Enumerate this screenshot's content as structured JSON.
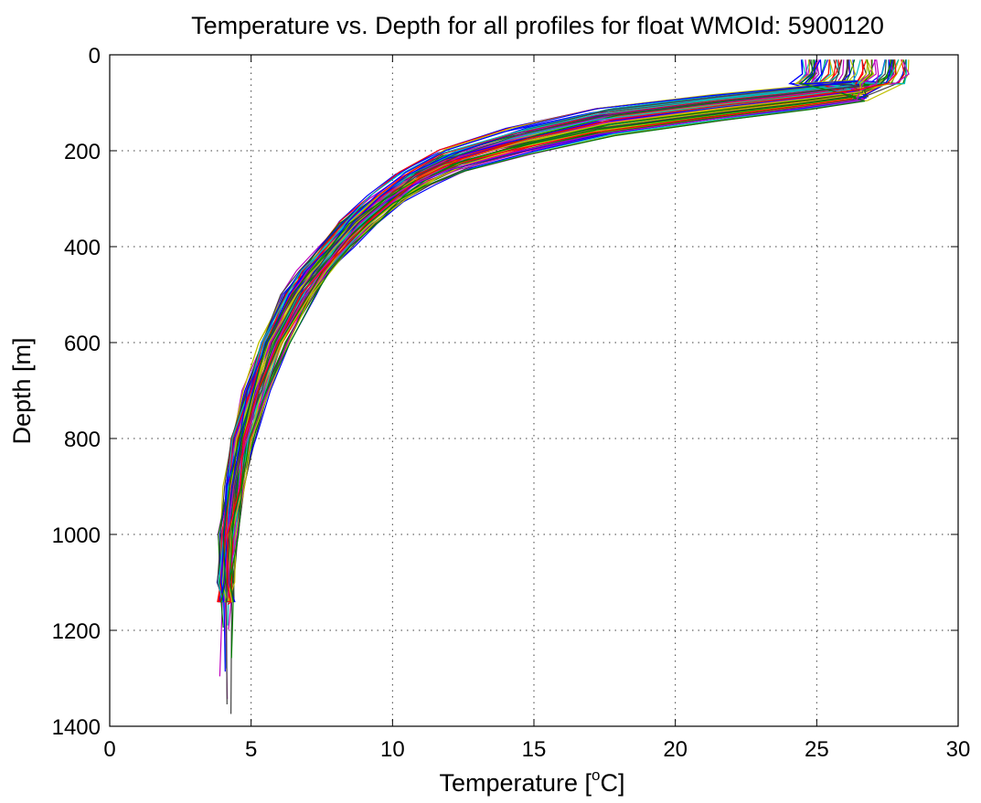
{
  "chart_data": {
    "type": "line",
    "title": "Temperature vs. Depth for all profiles for float WMOId: 5900120",
    "xlabel_main": "Temperature [",
    "xlabel_sup": "o",
    "xlabel_tail": "C]",
    "ylabel": "Depth [m]",
    "xlim": [
      0,
      30
    ],
    "ylim": [
      0,
      1400
    ],
    "y_reversed": true,
    "xticks": [
      0,
      5,
      10,
      15,
      20,
      25,
      30
    ],
    "xtick_labels": [
      "0",
      "5",
      "10",
      "15",
      "20",
      "25",
      "30"
    ],
    "yticks": [
      0,
      200,
      400,
      600,
      800,
      1000,
      1200,
      1400
    ],
    "ytick_labels": [
      "0",
      "200",
      "400",
      "600",
      "800",
      "1000",
      "1200",
      "1400"
    ],
    "grid": true,
    "legend": "none",
    "series_count": 80,
    "representative_profile": {
      "depth": [
        10,
        40,
        60,
        75,
        90,
        110,
        140,
        180,
        220,
        260,
        300,
        350,
        400,
        450,
        500,
        600,
        700,
        800,
        900,
        1000,
        1100,
        1140
      ],
      "temperature": [
        27.8,
        27.8,
        27.5,
        26.5,
        24.5,
        21.5,
        17.5,
        14.5,
        12.2,
        10.8,
        9.8,
        8.8,
        8.0,
        7.3,
        6.7,
        5.8,
        5.2,
        4.7,
        4.4,
        4.2,
        4.1,
        4.1
      ]
    },
    "surface_temperature_range": [
      24.5,
      28.2
    ],
    "max_depth_range": [
      1140,
      1385
    ],
    "colors": [
      "#0000ff",
      "#008000",
      "#ff0000",
      "#00bfbf",
      "#bf00bf",
      "#bfbf00",
      "#404040"
    ]
  }
}
